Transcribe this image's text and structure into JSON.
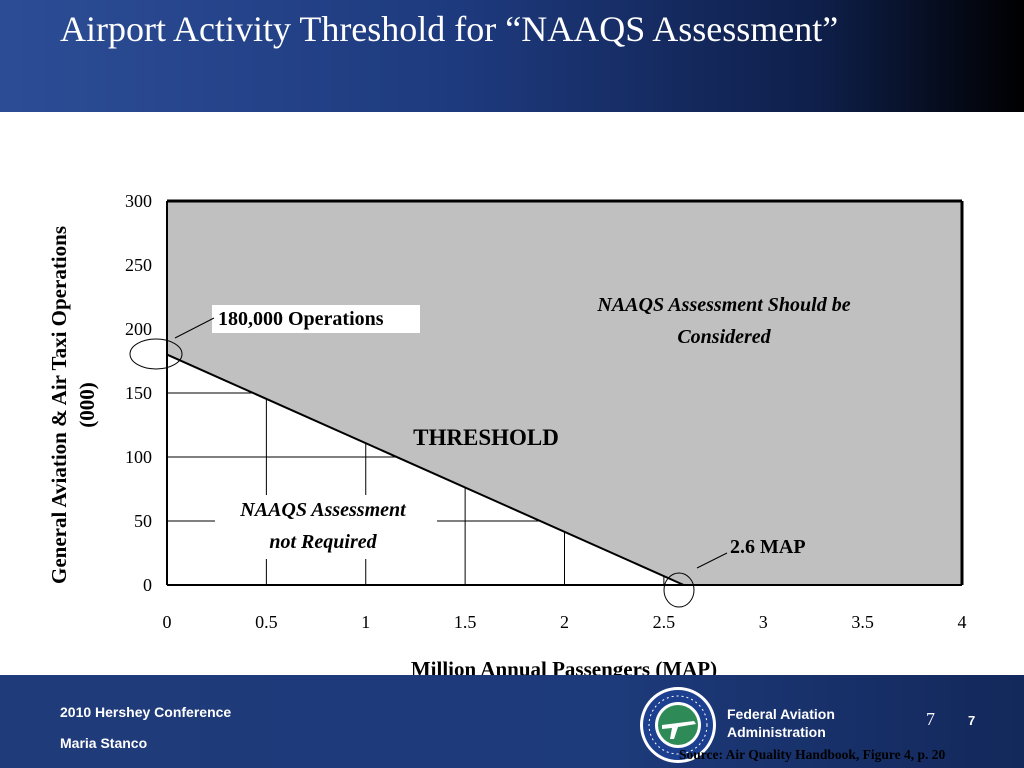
{
  "slide": {
    "title": "Airport Activity Threshold for “NAAQS Assessment”"
  },
  "footer": {
    "conference": "2010 Hershey Conference",
    "presenter": "Maria Stanco",
    "agency_line1": "Federal Aviation",
    "agency_line2": "Administration",
    "page_number_small": "7",
    "page_number_bold": "7",
    "source": "Source: Air Quality Handbook, Figure 4, p. 20",
    "logo_ring_text": "FEDERAL AVIATION ADMINISTRATION"
  },
  "chart_data": {
    "type": "area",
    "xlabel": "Million Annual Passengers (MAP)",
    "ylabel": "General Aviation & Air Taxi Operations (000)",
    "xlim": [
      0,
      4
    ],
    "ylim": [
      0,
      300
    ],
    "x_ticks": [
      "0",
      "0.5",
      "1",
      "1.5",
      "2",
      "2.5",
      "3",
      "3.5",
      "4"
    ],
    "y_ticks": [
      "0",
      "50",
      "100",
      "150",
      "200",
      "250",
      "300"
    ],
    "threshold_line": {
      "x": [
        0,
        2.6
      ],
      "y": [
        180,
        0
      ]
    },
    "annotations": {
      "operations": "180,000 Operations",
      "map": "2.6 MAP",
      "threshold": "THRESHOLD",
      "above_line1": "NAAQS Assessment Should be",
      "above_line2": "Considered",
      "below_line1": "NAAQS Assessment",
      "below_line2": "not Required"
    },
    "fill_color": "#c0c0c0"
  }
}
